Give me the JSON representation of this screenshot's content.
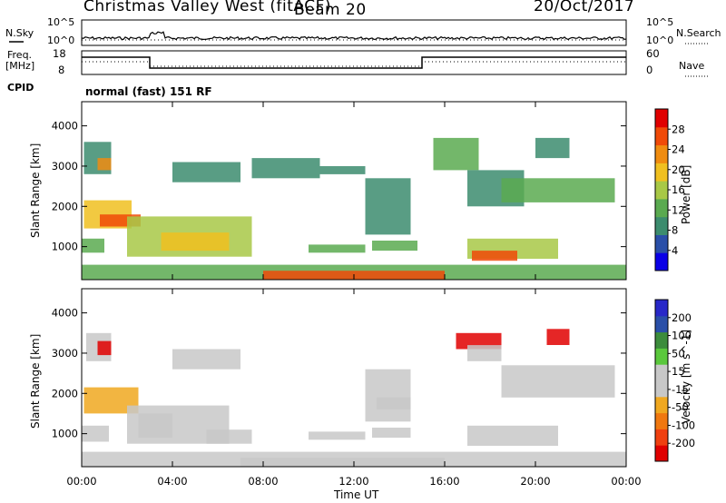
{
  "header": {
    "title": "Christmas Valley West (fitACF)",
    "beam": "Beam 20",
    "date": "20/Oct/2017"
  },
  "panels": {
    "nsky_label": "N.Sky",
    "nsky_ticks": [
      "10^5",
      "10^0"
    ],
    "nsearch_label": "N.Search",
    "nsearch_ticks": [
      "10^5",
      "10^0"
    ],
    "freq_label_1": "Freq.",
    "freq_label_2": "[MHz]",
    "freq_ticks": [
      "18",
      "8"
    ],
    "nave_label": "Nave",
    "nave_ticks": [
      "60",
      "0"
    ],
    "cpid_label": "CPID",
    "cpid_value": "normal (fast) 151 RF"
  },
  "colors": {
    "power_scale": [
      "#0a00e6",
      "#2a4fa8",
      "#3c8c6e",
      "#5aaa50",
      "#a8c846",
      "#f0c020",
      "#f08c10",
      "#f04a08",
      "#e00000"
    ],
    "velocity_scale": [
      "#e00000",
      "#f04010",
      "#f07810",
      "#f0a820",
      "#c8c8c8",
      "#c8c8c8",
      "#5ac83c",
      "#3c8c3c",
      "#2a4fa8",
      "#2828c8"
    ]
  },
  "chart_data": [
    {
      "type": "heatmap",
      "name": "power",
      "ylabel": "Slant Range [km]",
      "yticks": [
        "1000",
        "2000",
        "3000",
        "4000"
      ],
      "ylim": [
        180,
        4600
      ],
      "xlim": [
        0,
        24
      ],
      "colorbar_label": "Power [dB]",
      "colorbar_ticks": [
        "4",
        "8",
        "12",
        "16",
        "20",
        "24",
        "28"
      ],
      "colorbar_range": [
        0,
        32
      ],
      "regions": [
        {
          "t0": 0.1,
          "t1": 1.3,
          "r0": 2800,
          "r1": 3600,
          "v": 10
        },
        {
          "t0": 0.7,
          "t1": 1.3,
          "r0": 2900,
          "r1": 3200,
          "v": 22
        },
        {
          "t0": 0.0,
          "t1": 1.0,
          "r0": 850,
          "r1": 1200,
          "v": 14
        },
        {
          "t0": 0.1,
          "t1": 2.2,
          "r0": 1450,
          "r1": 2150,
          "v": 20
        },
        {
          "t0": 0.8,
          "t1": 2.6,
          "r0": 1500,
          "r1": 1800,
          "v": 28
        },
        {
          "t0": 2.0,
          "t1": 7.5,
          "r0": 750,
          "r1": 1750,
          "v": 15
        },
        {
          "t0": 3.5,
          "t1": 6.5,
          "r0": 900,
          "r1": 1350,
          "v": 18
        },
        {
          "t0": 4.0,
          "t1": 7.0,
          "r0": 2600,
          "r1": 3100,
          "v": 8
        },
        {
          "t0": 7.5,
          "t1": 10.5,
          "r0": 2700,
          "r1": 3200,
          "v": 8
        },
        {
          "t0": 10.5,
          "t1": 12.5,
          "r0": 2800,
          "r1": 3000,
          "v": 9
        },
        {
          "t0": 12.5,
          "t1": 14.5,
          "r0": 1300,
          "r1": 2700,
          "v": 8
        },
        {
          "t0": 12.8,
          "t1": 14.8,
          "r0": 900,
          "r1": 1150,
          "v": 13
        },
        {
          "t0": 10.0,
          "t1": 12.5,
          "r0": 850,
          "r1": 1050,
          "v": 11
        },
        {
          "t0": 15.5,
          "t1": 17.5,
          "r0": 2900,
          "r1": 3700,
          "v": 12
        },
        {
          "t0": 17.0,
          "t1": 19.5,
          "r0": 2000,
          "r1": 2900,
          "v": 10
        },
        {
          "t0": 18.5,
          "t1": 23.5,
          "r0": 2100,
          "r1": 2700,
          "v": 13
        },
        {
          "t0": 17.0,
          "t1": 21.0,
          "r0": 700,
          "r1": 1200,
          "v": 17
        },
        {
          "t0": 17.2,
          "t1": 19.2,
          "r0": 650,
          "r1": 900,
          "v": 27
        },
        {
          "t0": 20.0,
          "t1": 21.5,
          "r0": 3200,
          "r1": 3700,
          "v": 9
        },
        {
          "t0": 0.0,
          "t1": 24.0,
          "r0": 180,
          "r1": 550,
          "v": 12
        },
        {
          "t0": 8.0,
          "t1": 16.0,
          "r0": 180,
          "r1": 400,
          "v": 26
        }
      ]
    },
    {
      "type": "heatmap",
      "name": "velocity",
      "ylabel": "Slant Range [km]",
      "yticks": [
        "1000",
        "2000",
        "3000",
        "4000"
      ],
      "ylim": [
        180,
        4600
      ],
      "xlim": [
        0,
        24
      ],
      "xlabel": "Time UT",
      "xticks": [
        "00:00",
        "04:00",
        "08:00",
        "12:00",
        "16:00",
        "20:00",
        "00:00"
      ],
      "colorbar_label": "Velocity [m s^-1]",
      "colorbar_ticks": [
        "-200",
        "-100",
        "-50",
        "-15",
        "15",
        "50",
        "100",
        "200"
      ],
      "colorbar_range": [
        -250,
        250
      ],
      "regions": [
        {
          "t0": 0.2,
          "t1": 1.3,
          "r0": 2800,
          "r1": 3500,
          "v": 0
        },
        {
          "t0": 0.7,
          "t1": 1.3,
          "r0": 2950,
          "r1": 3300,
          "v": -220
        },
        {
          "t0": 0.0,
          "t1": 1.2,
          "r0": 800,
          "r1": 1200,
          "v": 0
        },
        {
          "t0": 0.1,
          "t1": 2.5,
          "r0": 1500,
          "r1": 2150,
          "v": -60
        },
        {
          "t0": 2.0,
          "t1": 6.5,
          "r0": 750,
          "r1": 1700,
          "v": -40
        },
        {
          "t0": 2.5,
          "t1": 4.0,
          "r0": 900,
          "r1": 1500,
          "v": 0
        },
        {
          "t0": 5.5,
          "t1": 7.5,
          "r0": 750,
          "r1": 1100,
          "v": -20
        },
        {
          "t0": 4.0,
          "t1": 7.0,
          "r0": 2600,
          "r1": 3100,
          "v": 0
        },
        {
          "t0": 12.5,
          "t1": 14.5,
          "r0": 1300,
          "r1": 2600,
          "v": 0
        },
        {
          "t0": 13.0,
          "t1": 14.5,
          "r0": 1600,
          "r1": 1900,
          "v": 40
        },
        {
          "t0": 12.8,
          "t1": 14.5,
          "r0": 900,
          "r1": 1150,
          "v": -45
        },
        {
          "t0": 10.0,
          "t1": 12.5,
          "r0": 850,
          "r1": 1050,
          "v": 0
        },
        {
          "t0": 16.5,
          "t1": 18.5,
          "r0": 3100,
          "r1": 3500,
          "v": -230
        },
        {
          "t0": 17.0,
          "t1": 18.5,
          "r0": 2800,
          "r1": 3200,
          "v": 0
        },
        {
          "t0": 18.5,
          "t1": 23.5,
          "r0": 1900,
          "r1": 2700,
          "v": 0
        },
        {
          "t0": 17.0,
          "t1": 21.0,
          "r0": 700,
          "r1": 1200,
          "v": 0
        },
        {
          "t0": 20.5,
          "t1": 21.5,
          "r0": 3200,
          "r1": 3600,
          "v": -220
        },
        {
          "t0": 0.0,
          "t1": 24.0,
          "r0": 180,
          "r1": 550,
          "v": -20
        },
        {
          "t0": 7.0,
          "t1": 16.0,
          "r0": 180,
          "r1": 400,
          "v": 30
        }
      ]
    }
  ]
}
